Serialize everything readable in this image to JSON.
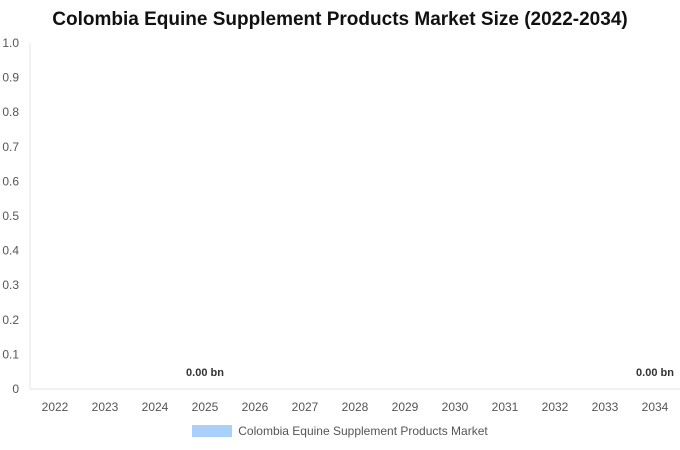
{
  "chart_data": {
    "type": "bar",
    "title": "Colombia Equine Supplement Products Market Size (2022-2034)",
    "categories": [
      "2022",
      "2023",
      "2024",
      "2025",
      "2026",
      "2027",
      "2028",
      "2029",
      "2030",
      "2031",
      "2032",
      "2033",
      "2034"
    ],
    "series": [
      {
        "name": "Colombia Equine Supplement Products Market",
        "values": [
          0,
          0,
          0,
          0,
          0,
          0,
          0,
          0,
          0,
          0,
          0,
          0,
          0
        ],
        "color": "#a8d0f8"
      }
    ],
    "data_labels": [
      {
        "category": "2025",
        "text": "0.00 bn"
      },
      {
        "category": "2034",
        "text": "0.00 bn"
      }
    ],
    "yticks": [
      "0",
      "0.1",
      "0.2",
      "0.3",
      "0.4",
      "0.5",
      "0.6",
      "0.7",
      "0.8",
      "0.9",
      "1.0"
    ],
    "ylim": [
      0,
      1.0
    ],
    "grid": false,
    "legend_position": "bottom"
  }
}
